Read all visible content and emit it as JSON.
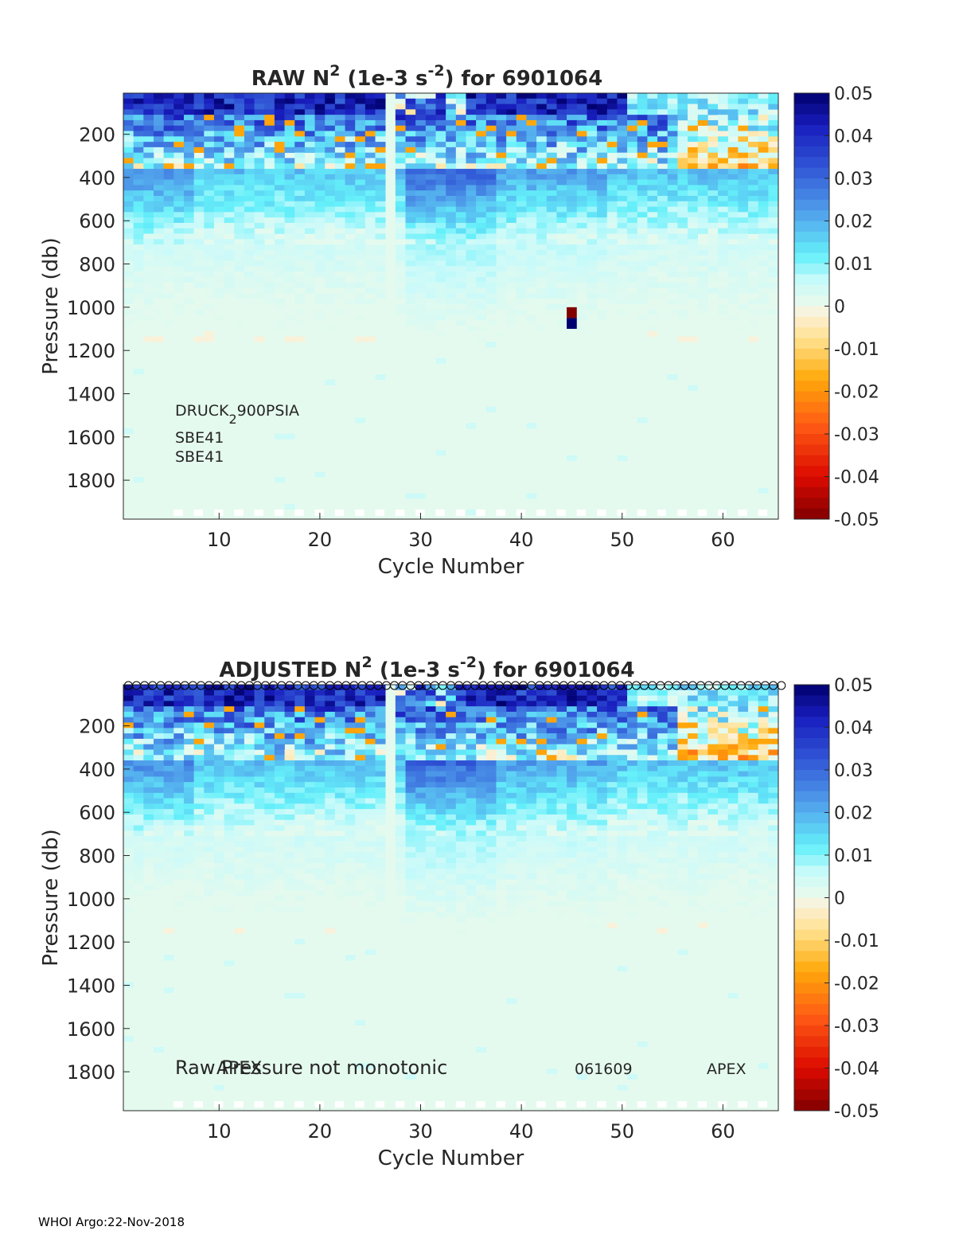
{
  "chart_data": [
    {
      "type": "heatmap",
      "id": "raw",
      "title_prefix": "RAW N",
      "title_sup": "2",
      "title_mid": " (1e-3 s",
      "title_sup2": "-2",
      "title_suffix": ") for 6901064",
      "xlabel": "Cycle Number",
      "ylabel": "Pressure (db)",
      "xlim": [
        1,
        65
      ],
      "ylim": [
        1980,
        10
      ],
      "xticks": [
        10,
        20,
        30,
        40,
        50,
        60
      ],
      "yticks": [
        200,
        400,
        600,
        800,
        1000,
        1200,
        1400,
        1600,
        1800
      ],
      "colorbar": {
        "range": [
          -0.05,
          0.05
        ],
        "ticks": [
          "0.05",
          "0.04",
          "0.03",
          "0.02",
          "0.01",
          "0",
          "-0.01",
          "-0.02",
          "-0.03",
          "-0.04",
          "-0.05"
        ]
      },
      "missing_cycles": [
        27
      ],
      "annotations": {
        "sensor_pressure": "DRUCK",
        "sensor_pressure_sub": "2",
        "sensor_pressure_tail": "900PSIA",
        "sensor_1": "SBE41",
        "sensor_2": "SBE41"
      },
      "spike": {
        "cycle": 45,
        "pressure_top": 1000,
        "pressure_bottom": 1100,
        "value_top": -0.05,
        "value_bottom": 0.05
      }
    },
    {
      "type": "heatmap",
      "id": "adjusted",
      "title_prefix": "ADJUSTED N",
      "title_sup": "2",
      "title_mid": " (1e-3 s",
      "title_sup2": "-2",
      "title_suffix": ") for 6901064",
      "xlabel": "Cycle Number",
      "ylabel": "Pressure (db)",
      "xlim": [
        1,
        65
      ],
      "ylim": [
        1980,
        10
      ],
      "xticks": [
        10,
        20,
        30,
        40,
        50,
        60
      ],
      "yticks": [
        200,
        400,
        600,
        800,
        1000,
        1200,
        1400,
        1600,
        1800
      ],
      "colorbar": {
        "range": [
          -0.05,
          0.05
        ],
        "ticks": [
          "0.05",
          "0.04",
          "0.03",
          "0.02",
          "0.01",
          "0",
          "-0.01",
          "-0.02",
          "-0.03",
          "-0.04",
          "-0.05"
        ]
      },
      "missing_cycles": [
        27
      ],
      "surface_marker": "o",
      "annotations": {
        "note": "Raw Pressure not monotonic",
        "overlap_label": "APEX",
        "firmware": "061609",
        "float_type": "APEX"
      }
    }
  ],
  "footer": "WHOI Argo:22-Nov-2018"
}
